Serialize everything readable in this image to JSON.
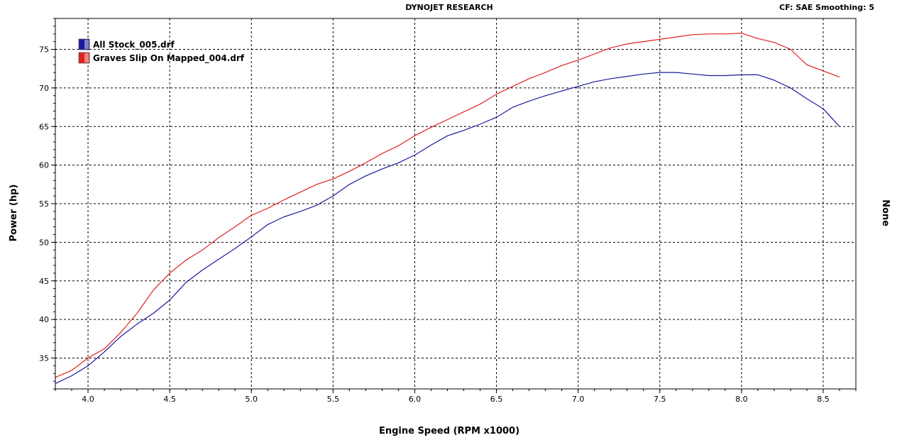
{
  "header": {
    "center": "DYNOJET RESEARCH",
    "right": "CF: SAE  Smoothing: 5"
  },
  "chart_data": {
    "type": "line",
    "xlabel": "Engine Speed (RPM x1000)",
    "ylabel": "Power (hp)",
    "y2label": "None",
    "xlim": [
      3.8,
      8.7
    ],
    "ylim": [
      31,
      79
    ],
    "x_ticks": [
      "4.0",
      "4.5",
      "5.0",
      "5.5",
      "6.0",
      "6.5",
      "7.0",
      "7.5",
      "8.0",
      "8.5"
    ],
    "y_ticks": [
      "35",
      "40",
      "45",
      "50",
      "55",
      "60",
      "65",
      "70",
      "75"
    ],
    "grid": true,
    "legend_position": "top-left",
    "series": [
      {
        "name": "All Stock_005.drf",
        "color": "#1a1aa0",
        "points": [
          [
            3.8,
            31.7
          ],
          [
            3.9,
            32.7
          ],
          [
            4.0,
            34.0
          ],
          [
            4.1,
            35.8
          ],
          [
            4.2,
            37.8
          ],
          [
            4.3,
            39.4
          ],
          [
            4.4,
            40.8
          ],
          [
            4.5,
            42.5
          ],
          [
            4.6,
            44.8
          ],
          [
            4.7,
            46.4
          ],
          [
            4.8,
            47.8
          ],
          [
            4.9,
            49.2
          ],
          [
            5.0,
            50.7
          ],
          [
            5.1,
            52.3
          ],
          [
            5.2,
            53.3
          ],
          [
            5.3,
            54.0
          ],
          [
            5.4,
            54.8
          ],
          [
            5.5,
            56.0
          ],
          [
            5.6,
            57.5
          ],
          [
            5.7,
            58.6
          ],
          [
            5.8,
            59.5
          ],
          [
            5.9,
            60.3
          ],
          [
            6.0,
            61.3
          ],
          [
            6.1,
            62.6
          ],
          [
            6.2,
            63.8
          ],
          [
            6.3,
            64.5
          ],
          [
            6.4,
            65.3
          ],
          [
            6.5,
            66.2
          ],
          [
            6.6,
            67.5
          ],
          [
            6.7,
            68.3
          ],
          [
            6.8,
            69.0
          ],
          [
            6.9,
            69.6
          ],
          [
            7.0,
            70.2
          ],
          [
            7.1,
            70.8
          ],
          [
            7.2,
            71.2
          ],
          [
            7.3,
            71.5
          ],
          [
            7.4,
            71.8
          ],
          [
            7.5,
            72.0
          ],
          [
            7.6,
            72.0
          ],
          [
            7.7,
            71.8
          ],
          [
            7.8,
            71.6
          ],
          [
            7.9,
            71.6
          ],
          [
            8.0,
            71.7
          ],
          [
            8.1,
            71.7
          ],
          [
            8.2,
            71.0
          ],
          [
            8.3,
            70.0
          ],
          [
            8.4,
            68.6
          ],
          [
            8.5,
            67.3
          ],
          [
            8.6,
            65.0
          ]
        ]
      },
      {
        "name": "Graves Slip On Mapped_004.drf",
        "color": "#e02020",
        "points": [
          [
            3.8,
            32.5
          ],
          [
            3.9,
            33.4
          ],
          [
            4.0,
            35.0
          ],
          [
            4.1,
            36.2
          ],
          [
            4.2,
            38.3
          ],
          [
            4.3,
            40.8
          ],
          [
            4.4,
            43.8
          ],
          [
            4.5,
            46.0
          ],
          [
            4.6,
            47.7
          ],
          [
            4.7,
            49.0
          ],
          [
            4.8,
            50.6
          ],
          [
            4.9,
            52.0
          ],
          [
            5.0,
            53.5
          ],
          [
            5.1,
            54.4
          ],
          [
            5.2,
            55.5
          ],
          [
            5.3,
            56.5
          ],
          [
            5.4,
            57.5
          ],
          [
            5.5,
            58.2
          ],
          [
            5.6,
            59.2
          ],
          [
            5.7,
            60.3
          ],
          [
            5.8,
            61.5
          ],
          [
            5.9,
            62.5
          ],
          [
            6.0,
            63.8
          ],
          [
            6.1,
            64.9
          ],
          [
            6.2,
            65.9
          ],
          [
            6.3,
            66.9
          ],
          [
            6.4,
            67.9
          ],
          [
            6.5,
            69.2
          ],
          [
            6.6,
            70.2
          ],
          [
            6.7,
            71.2
          ],
          [
            6.8,
            72.0
          ],
          [
            6.9,
            72.9
          ],
          [
            7.0,
            73.6
          ],
          [
            7.1,
            74.4
          ],
          [
            7.2,
            75.2
          ],
          [
            7.3,
            75.7
          ],
          [
            7.4,
            76.0
          ],
          [
            7.5,
            76.3
          ],
          [
            7.6,
            76.6
          ],
          [
            7.7,
            76.9
          ],
          [
            7.8,
            77.0
          ],
          [
            7.9,
            77.0
          ],
          [
            8.0,
            77.1
          ],
          [
            8.1,
            76.4
          ],
          [
            8.2,
            75.9
          ],
          [
            8.3,
            75.0
          ],
          [
            8.4,
            73.0
          ],
          [
            8.5,
            72.2
          ],
          [
            8.6,
            71.4
          ]
        ]
      }
    ]
  }
}
